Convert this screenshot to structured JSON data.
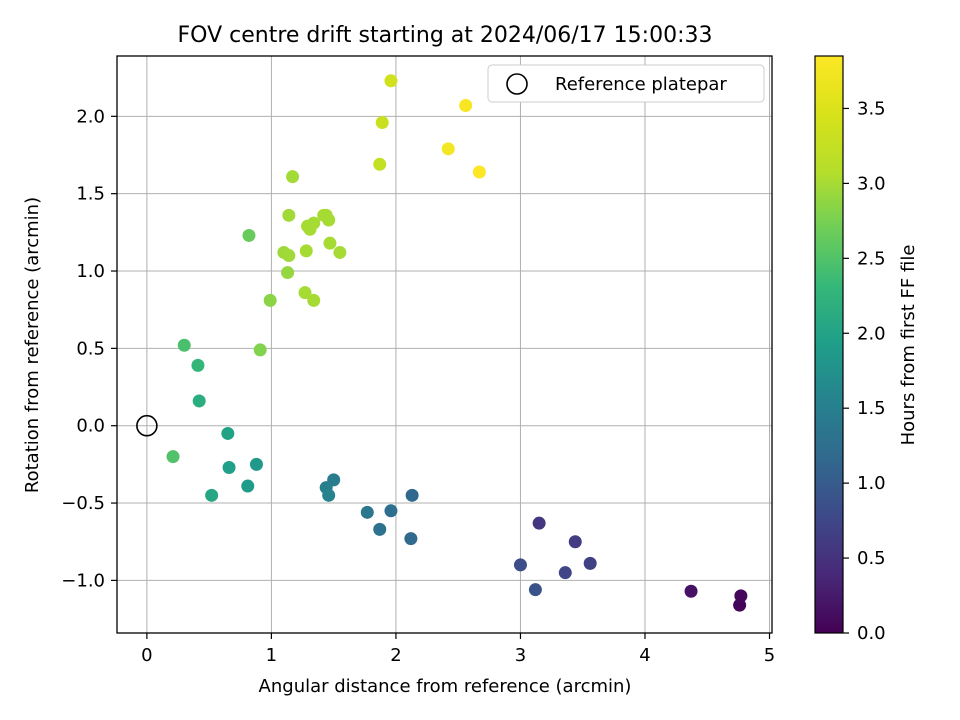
{
  "chart_data": {
    "type": "scatter",
    "title": "FOV centre drift starting at 2024/06/17 15:00:33",
    "xlabel": "Angular distance from reference (arcmin)",
    "ylabel": "Rotation from reference (arcmin)",
    "xlim": [
      -0.24,
      5.02
    ],
    "ylim": [
      -1.34,
      2.39
    ],
    "xticks": [
      0,
      1,
      2,
      3,
      4,
      5
    ],
    "yticks": [
      -1.0,
      -0.5,
      0.0,
      0.5,
      1.0,
      1.5,
      2.0
    ],
    "xtick_labels": [
      "0",
      "1",
      "2",
      "3",
      "4",
      "5"
    ],
    "ytick_labels": [
      "−1.0",
      "−0.5",
      "0.0",
      "0.5",
      "1.0",
      "1.5",
      "2.0"
    ],
    "grid": true,
    "legend": {
      "position": "top-right",
      "label": "Reference platepar"
    },
    "reference_point": {
      "x": 0,
      "y": 0
    },
    "colorbar": {
      "label": "Hours from first FF file",
      "min": 0.0,
      "max": 3.85,
      "ticks": [
        0.0,
        0.5,
        1.0,
        1.5,
        2.0,
        2.5,
        3.0,
        3.5
      ],
      "tick_labels": [
        "0.0",
        "0.5",
        "1.0",
        "1.5",
        "2.0",
        "2.5",
        "3.0",
        "3.5"
      ],
      "colormap": "viridis"
    },
    "points": [
      {
        "x": 4.76,
        "y": -1.16,
        "hours": 0.03
      },
      {
        "x": 4.77,
        "y": -1.1,
        "hours": 0.08
      },
      {
        "x": 4.37,
        "y": -1.07,
        "hours": 0.17
      },
      {
        "x": 3.15,
        "y": -0.63,
        "hours": 0.55
      },
      {
        "x": 3.44,
        "y": -0.75,
        "hours": 0.62
      },
      {
        "x": 3.56,
        "y": -0.89,
        "hours": 0.68
      },
      {
        "x": 3.36,
        "y": -0.95,
        "hours": 0.72
      },
      {
        "x": 3.0,
        "y": -0.9,
        "hours": 0.82
      },
      {
        "x": 3.12,
        "y": -1.06,
        "hours": 0.88
      },
      {
        "x": 2.13,
        "y": -0.45,
        "hours": 1.15
      },
      {
        "x": 2.12,
        "y": -0.73,
        "hours": 1.2
      },
      {
        "x": 1.96,
        "y": -0.55,
        "hours": 1.25
      },
      {
        "x": 1.87,
        "y": -0.67,
        "hours": 1.3
      },
      {
        "x": 1.77,
        "y": -0.56,
        "hours": 1.38
      },
      {
        "x": 1.5,
        "y": -0.35,
        "hours": 1.45
      },
      {
        "x": 1.44,
        "y": -0.4,
        "hours": 1.5
      },
      {
        "x": 1.46,
        "y": -0.45,
        "hours": 1.55
      },
      {
        "x": 0.88,
        "y": -0.25,
        "hours": 1.85
      },
      {
        "x": 0.81,
        "y": -0.39,
        "hours": 1.9
      },
      {
        "x": 0.66,
        "y": -0.27,
        "hours": 1.95
      },
      {
        "x": 0.65,
        "y": -0.05,
        "hours": 2.0
      },
      {
        "x": 0.52,
        "y": -0.45,
        "hours": 2.05
      },
      {
        "x": 0.42,
        "y": 0.16,
        "hours": 2.15
      },
      {
        "x": 0.41,
        "y": 0.39,
        "hours": 2.3
      },
      {
        "x": 0.3,
        "y": 0.52,
        "hours": 2.45
      },
      {
        "x": 0.21,
        "y": -0.2,
        "hours": 2.5
      },
      {
        "x": 0.82,
        "y": 1.23,
        "hours": 2.65
      },
      {
        "x": 0.91,
        "y": 0.49,
        "hours": 2.8
      },
      {
        "x": 0.99,
        "y": 0.81,
        "hours": 2.85
      },
      {
        "x": 1.13,
        "y": 0.99,
        "hours": 2.9
      },
      {
        "x": 1.1,
        "y": 1.12,
        "hours": 2.95
      },
      {
        "x": 1.14,
        "y": 1.1,
        "hours": 2.97
      },
      {
        "x": 1.14,
        "y": 1.36,
        "hours": 2.97
      },
      {
        "x": 1.17,
        "y": 1.61,
        "hours": 2.98
      },
      {
        "x": 1.27,
        "y": 0.86,
        "hours": 3.0
      },
      {
        "x": 1.34,
        "y": 0.81,
        "hours": 3.0
      },
      {
        "x": 1.28,
        "y": 1.13,
        "hours": 3.0
      },
      {
        "x": 1.29,
        "y": 1.29,
        "hours": 3.0
      },
      {
        "x": 1.31,
        "y": 1.27,
        "hours": 3.0
      },
      {
        "x": 1.34,
        "y": 1.31,
        "hours": 3.0
      },
      {
        "x": 1.42,
        "y": 1.36,
        "hours": 3.0
      },
      {
        "x": 1.44,
        "y": 1.36,
        "hours": 3.0
      },
      {
        "x": 1.46,
        "y": 1.33,
        "hours": 3.0
      },
      {
        "x": 1.47,
        "y": 1.18,
        "hours": 3.0
      },
      {
        "x": 1.55,
        "y": 1.12,
        "hours": 3.0
      },
      {
        "x": 1.87,
        "y": 1.69,
        "hours": 3.25
      },
      {
        "x": 1.89,
        "y": 1.96,
        "hours": 3.3
      },
      {
        "x": 1.96,
        "y": 2.23,
        "hours": 3.38
      },
      {
        "x": 2.42,
        "y": 1.79,
        "hours": 3.75
      },
      {
        "x": 2.56,
        "y": 2.07,
        "hours": 3.8
      },
      {
        "x": 2.67,
        "y": 1.64,
        "hours": 3.85
      }
    ]
  }
}
